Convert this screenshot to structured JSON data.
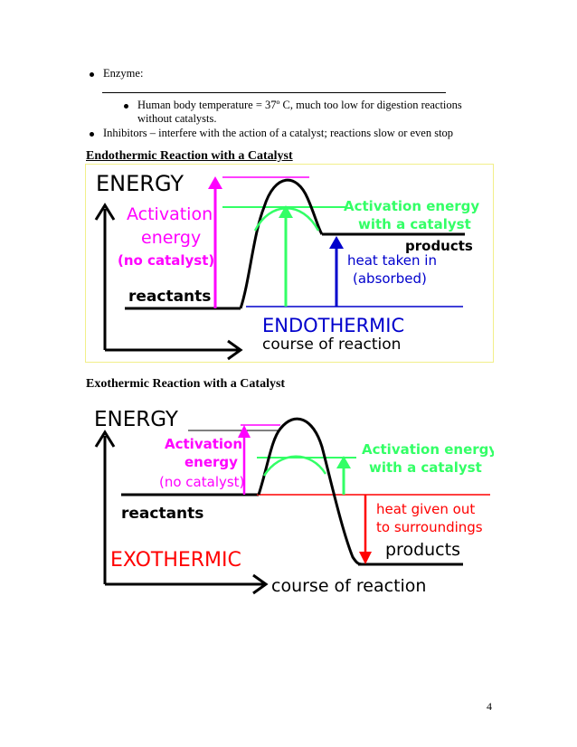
{
  "bullets": {
    "enzyme": "Enzyme:",
    "human_body_line1": "Human body temperature = 37º C, much too low for digestion reactions",
    "human_body_line2": "without catalysts.",
    "inhibitors": "Inhibitors – interfere with the action of a catalyst; reactions slow or even stop"
  },
  "endothermic": {
    "heading": "Endothermic Reaction with a Catalyst",
    "energy": "ENERGY",
    "activation_1": "Activation",
    "activation_2": "energy",
    "no_catalyst": "(no catalyst)",
    "act_cat_1": "Activation energy",
    "act_cat_2": "with a catalyst",
    "products": "products",
    "heat_1": "heat taken in",
    "heat_2": "(absorbed)",
    "reactants": "reactants",
    "type_label": "ENDOTHERMIC",
    "course": "course of reaction"
  },
  "exothermic": {
    "heading": "Exothermic Reaction with a Catalyst",
    "energy": "ENERGY",
    "activation_1": "Activation",
    "activation_2": "energy",
    "no_catalyst": "(no catalyst)",
    "act_cat_1": "Activation energy",
    "act_cat_2": "with a catalyst",
    "reactants": "reactants",
    "heat_1": "heat given out",
    "heat_2": "to surroundings",
    "products": "products",
    "type_label": "EXOTHERMIC",
    "course": "course of reaction"
  },
  "page_number": "4",
  "colors": {
    "magenta": "#ff00ff",
    "green": "#33ff66",
    "blue": "#0000cc",
    "red": "#ff0000",
    "frame": "#f2ef8a"
  }
}
